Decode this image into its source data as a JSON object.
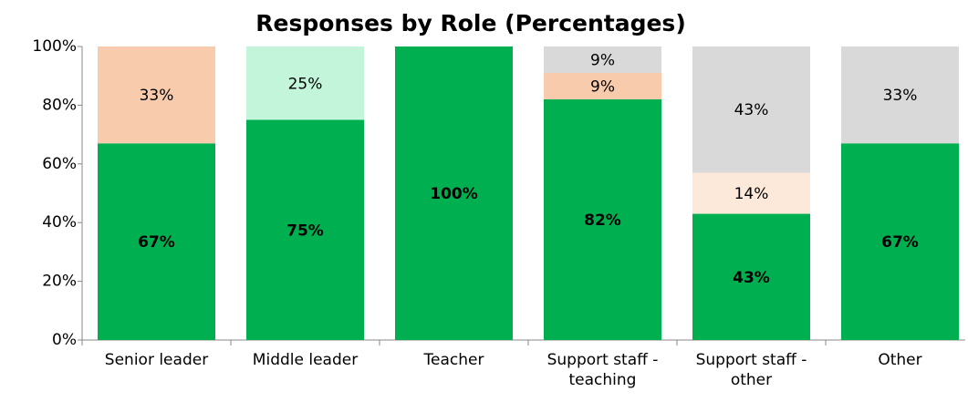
{
  "chart_data": {
    "type": "stacked_bar",
    "title": "Responses by Role (Percentages)",
    "categories": [
      "Senior leader",
      "Middle leader",
      "Teacher",
      "Support staff - teaching",
      "Support staff - other",
      "Other"
    ],
    "series": [
      {
        "color": "#00b050",
        "values": [
          67,
          75,
          100,
          82,
          43,
          67
        ],
        "value_labels": [
          "67%",
          "75%",
          "100%",
          "82%",
          "43%",
          "67%"
        ]
      },
      {
        "color": "#c2f5da",
        "values": [
          null,
          25,
          null,
          null,
          null,
          null
        ],
        "value_labels": [
          null,
          "25%",
          null,
          null,
          null,
          null
        ]
      },
      {
        "color": "#f8cbad",
        "values": [
          33,
          null,
          null,
          9,
          null,
          null
        ],
        "value_labels": [
          "33%",
          null,
          null,
          "9%",
          null,
          null
        ]
      },
      {
        "color": "#fde9d9",
        "values": [
          null,
          null,
          null,
          null,
          14,
          null
        ],
        "value_labels": [
          null,
          null,
          null,
          null,
          "14%",
          null
        ]
      },
      {
        "color": "#d9d9d9",
        "values": [
          null,
          null,
          null,
          9,
          43,
          33
        ],
        "value_labels": [
          null,
          null,
          null,
          "9%",
          "43%",
          "33%"
        ]
      }
    ],
    "ylim": [
      0,
      100
    ],
    "yticks": [
      {
        "value": 0,
        "label": "0%"
      },
      {
        "value": 20,
        "label": "20%"
      },
      {
        "value": 40,
        "label": "40%"
      },
      {
        "value": 60,
        "label": "60%"
      },
      {
        "value": 80,
        "label": "80%"
      },
      {
        "value": 100,
        "label": "100%"
      }
    ]
  }
}
